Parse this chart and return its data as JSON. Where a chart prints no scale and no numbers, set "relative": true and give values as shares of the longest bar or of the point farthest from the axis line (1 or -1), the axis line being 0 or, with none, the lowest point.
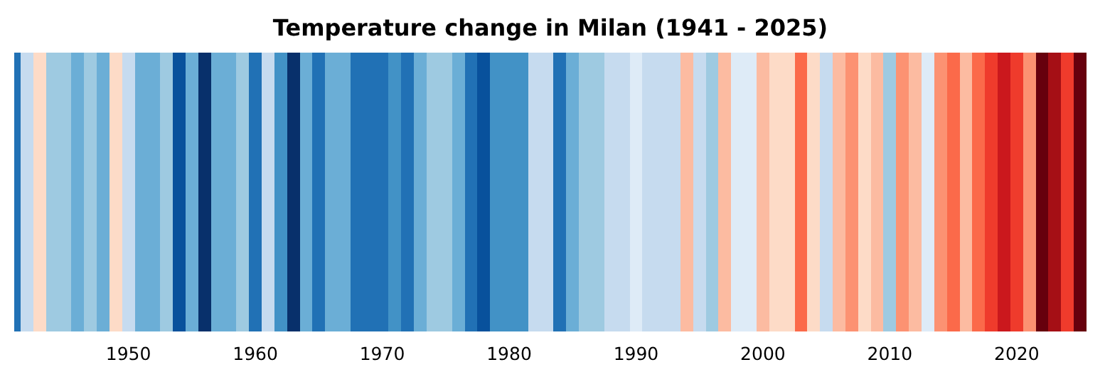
{
  "chart_data": {
    "type": "bar",
    "title": "Temperature change in Milan (1941 - 2025)",
    "relative": true,
    "x": [
      1941,
      1942,
      1943,
      1944,
      1945,
      1946,
      1947,
      1948,
      1949,
      1950,
      1951,
      1952,
      1953,
      1954,
      1955,
      1956,
      1957,
      1958,
      1959,
      1960,
      1961,
      1962,
      1963,
      1964,
      1965,
      1966,
      1967,
      1968,
      1969,
      1970,
      1971,
      1972,
      1973,
      1974,
      1975,
      1976,
      1977,
      1978,
      1979,
      1980,
      1981,
      1982,
      1983,
      1984,
      1985,
      1986,
      1987,
      1988,
      1989,
      1990,
      1991,
      1992,
      1993,
      1994,
      1995,
      1996,
      1997,
      1998,
      1999,
      2000,
      2001,
      2002,
      2003,
      2004,
      2005,
      2006,
      2007,
      2008,
      2009,
      2010,
      2011,
      2012,
      2013,
      2014,
      2015,
      2016,
      2017,
      2018,
      2019,
      2020,
      2021,
      2022,
      2023,
      2024,
      2025
    ],
    "values": [
      1,
      1,
      1,
      1,
      1,
      1,
      1,
      1,
      1,
      1,
      1,
      1,
      1,
      1,
      1,
      1,
      1,
      1,
      1,
      1,
      1,
      1,
      1,
      1,
      1,
      1,
      1,
      1,
      1,
      1,
      1,
      1,
      1,
      1,
      1,
      1,
      1,
      1,
      1,
      1,
      1,
      1,
      1,
      1,
      1,
      1,
      1,
      1,
      1,
      1,
      1,
      1,
      1,
      1,
      1,
      1,
      1,
      1,
      1,
      1,
      1,
      1,
      1,
      1,
      1,
      1,
      1,
      1,
      1,
      1,
      1,
      1,
      1,
      1,
      1,
      1,
      1,
      1,
      1,
      1,
      1,
      1,
      1,
      1,
      1
    ],
    "colors": [
      "#2171b5",
      "#c6dbef",
      "#fddbc7",
      "#9ecae1",
      "#9ecae1",
      "#6baed6",
      "#9ecae1",
      "#6baed6",
      "#fddbc7",
      "#c6dbef",
      "#6baed6",
      "#6baed6",
      "#9ecae1",
      "#08519c",
      "#6baed6",
      "#08306b",
      "#6baed6",
      "#6baed6",
      "#9ecae1",
      "#2171b5",
      "#c6dbef",
      "#4292c6",
      "#08306b",
      "#6baed6",
      "#2171b5",
      "#6baed6",
      "#6baed6",
      "#2171b5",
      "#2171b5",
      "#2171b5",
      "#4292c6",
      "#2171b5",
      "#6baed6",
      "#9ecae1",
      "#9ecae1",
      "#6baed6",
      "#2171b5",
      "#08519c",
      "#4292c6",
      "#4292c6",
      "#4292c6",
      "#c6dbef",
      "#c6dbef",
      "#2171b5",
      "#6baed6",
      "#9ecae1",
      "#9ecae1",
      "#c6dbef",
      "#c6dbef",
      "#deebf7",
      "#c6dbef",
      "#c6dbef",
      "#c6dbef",
      "#fcbba1",
      "#c6dbef",
      "#9ecae1",
      "#fcbba1",
      "#deebf7",
      "#deebf7",
      "#fcbba1",
      "#fddbc7",
      "#fddbc7",
      "#fb6a4a",
      "#fddbc7",
      "#c6dbef",
      "#fcbba1",
      "#fc9272",
      "#fddbc7",
      "#fcbba1",
      "#9ecae1",
      "#fc9272",
      "#fcbba1",
      "#deebf7",
      "#fc9272",
      "#fb6a4a",
      "#fcbba1",
      "#fb6a4a",
      "#ef3b2c",
      "#cb181d",
      "#ef3b2c",
      "#fc9272",
      "#67000d",
      "#a50f15",
      "#ef3b2c",
      "#67000d"
    ],
    "xlim": [
      1941,
      2025.5
    ],
    "xticks": [
      1950,
      1960,
      1970,
      1980,
      1990,
      2000,
      2010,
      2020
    ]
  }
}
